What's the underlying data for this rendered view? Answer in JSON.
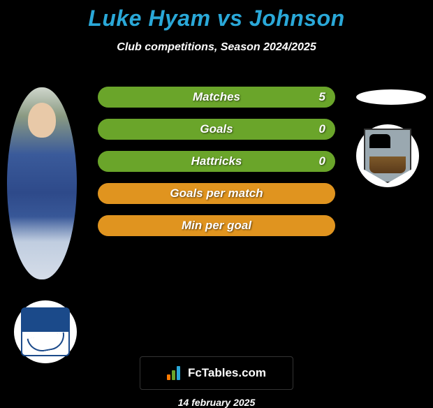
{
  "title": "Luke Hyam vs Johnson",
  "subtitle": "Club competitions, Season 2024/2025",
  "footer": {
    "brand": "FcTables.com",
    "date": "14 february 2025",
    "logo_bars": [
      {
        "height": 8,
        "color": "#ff7a00"
      },
      {
        "height": 14,
        "color": "#6aa52a"
      },
      {
        "height": 20,
        "color": "#2aa8d8"
      }
    ]
  },
  "colors": {
    "background": "#000000",
    "title": "#2aa8d8",
    "bar_fill_green": "#6aa52a",
    "bar_fill_orange": "#e0941f",
    "text": "#ffffff"
  },
  "bars": [
    {
      "label": "Matches",
      "value": "5",
      "show_value": true,
      "fill_pct": 100,
      "color": "#6aa52a"
    },
    {
      "label": "Goals",
      "value": "0",
      "show_value": true,
      "fill_pct": 100,
      "color": "#6aa52a"
    },
    {
      "label": "Hattricks",
      "value": "0",
      "show_value": true,
      "fill_pct": 100,
      "color": "#6aa52a"
    },
    {
      "label": "Goals per match",
      "value": "",
      "show_value": false,
      "fill_pct": 100,
      "color": "#e0941f"
    },
    {
      "label": "Min per goal",
      "value": "",
      "show_value": false,
      "fill_pct": 100,
      "color": "#e0941f"
    }
  ]
}
